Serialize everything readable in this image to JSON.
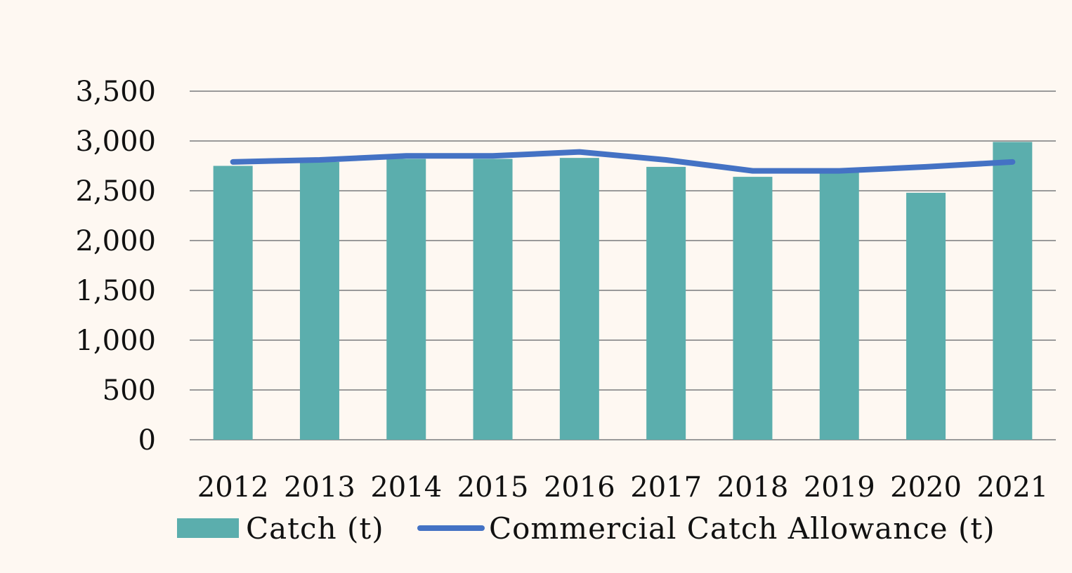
{
  "chart_data": {
    "type": "bar",
    "title": "",
    "xlabel": "",
    "ylabel": "",
    "categories": [
      "2012",
      "2013",
      "2014",
      "2015",
      "2016",
      "2017",
      "2018",
      "2019",
      "2020",
      "2021"
    ],
    "ylim": [
      0,
      3500
    ],
    "yticks": [
      0,
      500,
      1000,
      1500,
      2000,
      2500,
      3000,
      3500
    ],
    "ytick_labels": [
      "0",
      "500",
      "1,000",
      "1,500",
      "2,000",
      "2,500",
      "3,000",
      "3,500"
    ],
    "grid": true,
    "legend_position": "bottom",
    "series": [
      {
        "name": "Catch (t)",
        "type": "bar",
        "color": "#5BAEAD",
        "values": [
          2750,
          2790,
          2820,
          2820,
          2830,
          2740,
          2640,
          2700,
          2480,
          2990
        ]
      },
      {
        "name": "Commercial Catch Allowance (t)",
        "type": "line",
        "color": "#4472C4",
        "values": [
          2790,
          2810,
          2850,
          2850,
          2890,
          2810,
          2700,
          2700,
          2740,
          2790
        ]
      }
    ]
  },
  "colors": {
    "background": "#FEF8F2",
    "gridline": "#9A9A9A",
    "text": "#111111"
  }
}
